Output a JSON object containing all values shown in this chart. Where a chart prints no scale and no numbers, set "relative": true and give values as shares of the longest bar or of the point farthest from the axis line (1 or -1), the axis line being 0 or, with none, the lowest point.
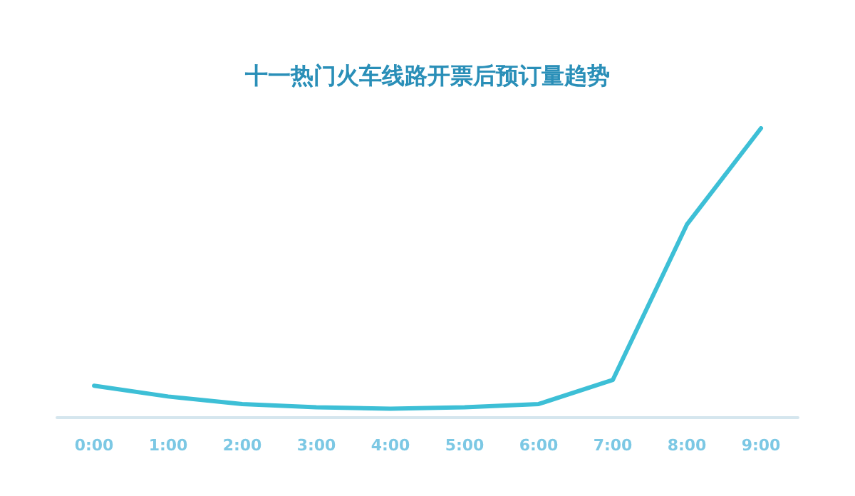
{
  "chart_data": {
    "type": "line",
    "title": "十一热门火车线路开票后预订量趋势",
    "relative": true,
    "categories": [
      "0:00",
      "1:00",
      "2:00",
      "3:00",
      "4:00",
      "5:00",
      "6:00",
      "7:00",
      "8:00",
      "9:00"
    ],
    "series": [
      {
        "color": "#3dbfd6",
        "values": [
          0.11,
          0.073,
          0.047,
          0.036,
          0.031,
          0.036,
          0.047,
          0.13,
          0.667,
          1
        ]
      }
    ],
    "marker": "none",
    "grid": false
  }
}
